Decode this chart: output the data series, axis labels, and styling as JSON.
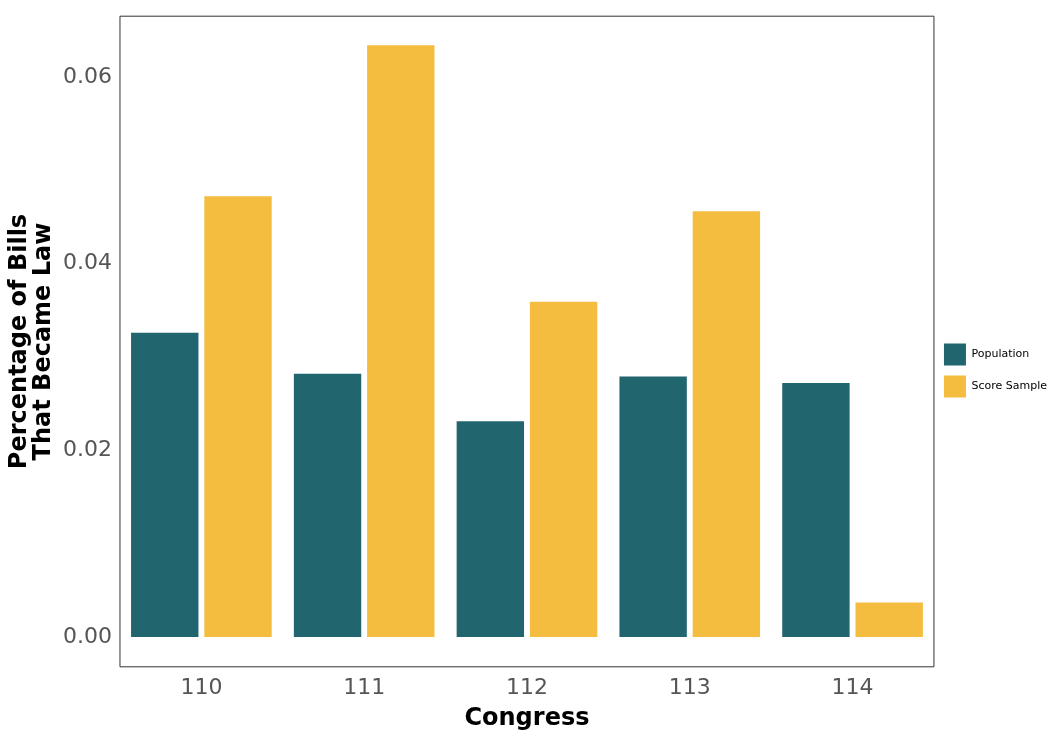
{
  "chart_data": {
    "type": "bar",
    "xlabel": "Congress",
    "ylabel": "Percentage of Bills That Became Law",
    "categories": [
      "110",
      "111",
      "112",
      "113",
      "114"
    ],
    "series": [
      {
        "name": "Population",
        "color": "#21666e",
        "values": [
          0.0326,
          0.0282,
          0.0231,
          0.0279,
          0.0272
        ]
      },
      {
        "name": "Score Sample",
        "color": "#f5bd40",
        "values": [
          0.0472,
          0.0634,
          0.0359,
          0.0456,
          0.0037
        ]
      }
    ],
    "ylim": [
      -0.0032,
      0.0665
    ],
    "yticks": [
      {
        "value": 0,
        "label": "0.00"
      },
      0.02,
      0.04,
      0.06
    ],
    "grid": false,
    "legend": "right"
  }
}
